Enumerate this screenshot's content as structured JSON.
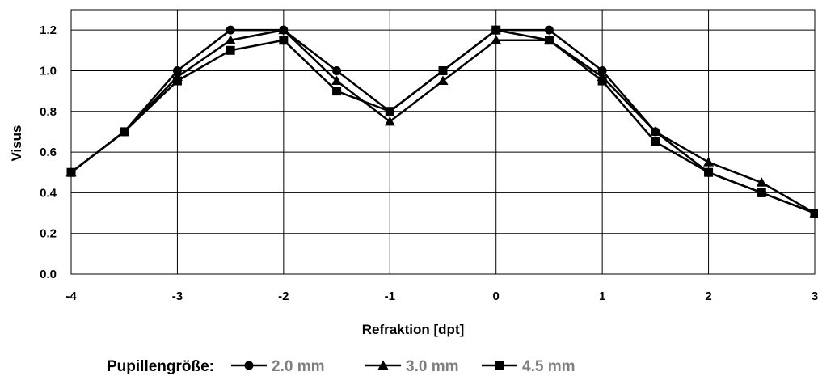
{
  "chart_data": {
    "type": "line",
    "xlabel": "Refraktion [dpt]",
    "ylabel": "Visus",
    "xlim": [
      -4,
      3
    ],
    "ylim": [
      0,
      1.3
    ],
    "x_ticks": [
      -4,
      -3,
      -2,
      -1,
      0,
      1,
      2,
      3
    ],
    "y_ticks": [
      0.0,
      0.2,
      0.4,
      0.6,
      0.8,
      1.0,
      1.2
    ],
    "x_tick_labels": [
      "-4",
      "-3",
      "-2",
      "-1",
      "0",
      "1",
      "2",
      "3"
    ],
    "y_tick_labels": [
      "0.0",
      "0.2",
      "0.4",
      "0.6",
      "0.8",
      "1.0",
      "1.2"
    ],
    "grid": true,
    "legend_title": "Pupillengröße:",
    "legend_position": "bottom",
    "line_color": "#000000",
    "x": [
      -4,
      -3.5,
      -3,
      -2.5,
      -2,
      -1.5,
      -1,
      -0.5,
      0,
      0.5,
      1,
      1.5,
      2,
      2.5,
      3
    ],
    "series": [
      {
        "name": "2.0 mm",
        "marker": "circle",
        "values": [
          0.5,
          0.7,
          1.0,
          1.2,
          1.2,
          1.0,
          0.8,
          1.0,
          1.2,
          1.2,
          1.0,
          0.7,
          0.5,
          0.4,
          0.3
        ]
      },
      {
        "name": "3.0 mm",
        "marker": "triangle",
        "values": [
          0.5,
          0.7,
          0.97,
          1.15,
          1.2,
          0.95,
          0.75,
          0.95,
          1.15,
          1.15,
          0.97,
          0.7,
          0.55,
          0.45,
          0.3
        ]
      },
      {
        "name": "4.5 mm",
        "marker": "square",
        "values": [
          0.5,
          0.7,
          0.95,
          1.1,
          1.15,
          0.9,
          0.8,
          1.0,
          1.2,
          1.15,
          0.95,
          0.65,
          0.5,
          0.4,
          0.3
        ]
      }
    ]
  }
}
